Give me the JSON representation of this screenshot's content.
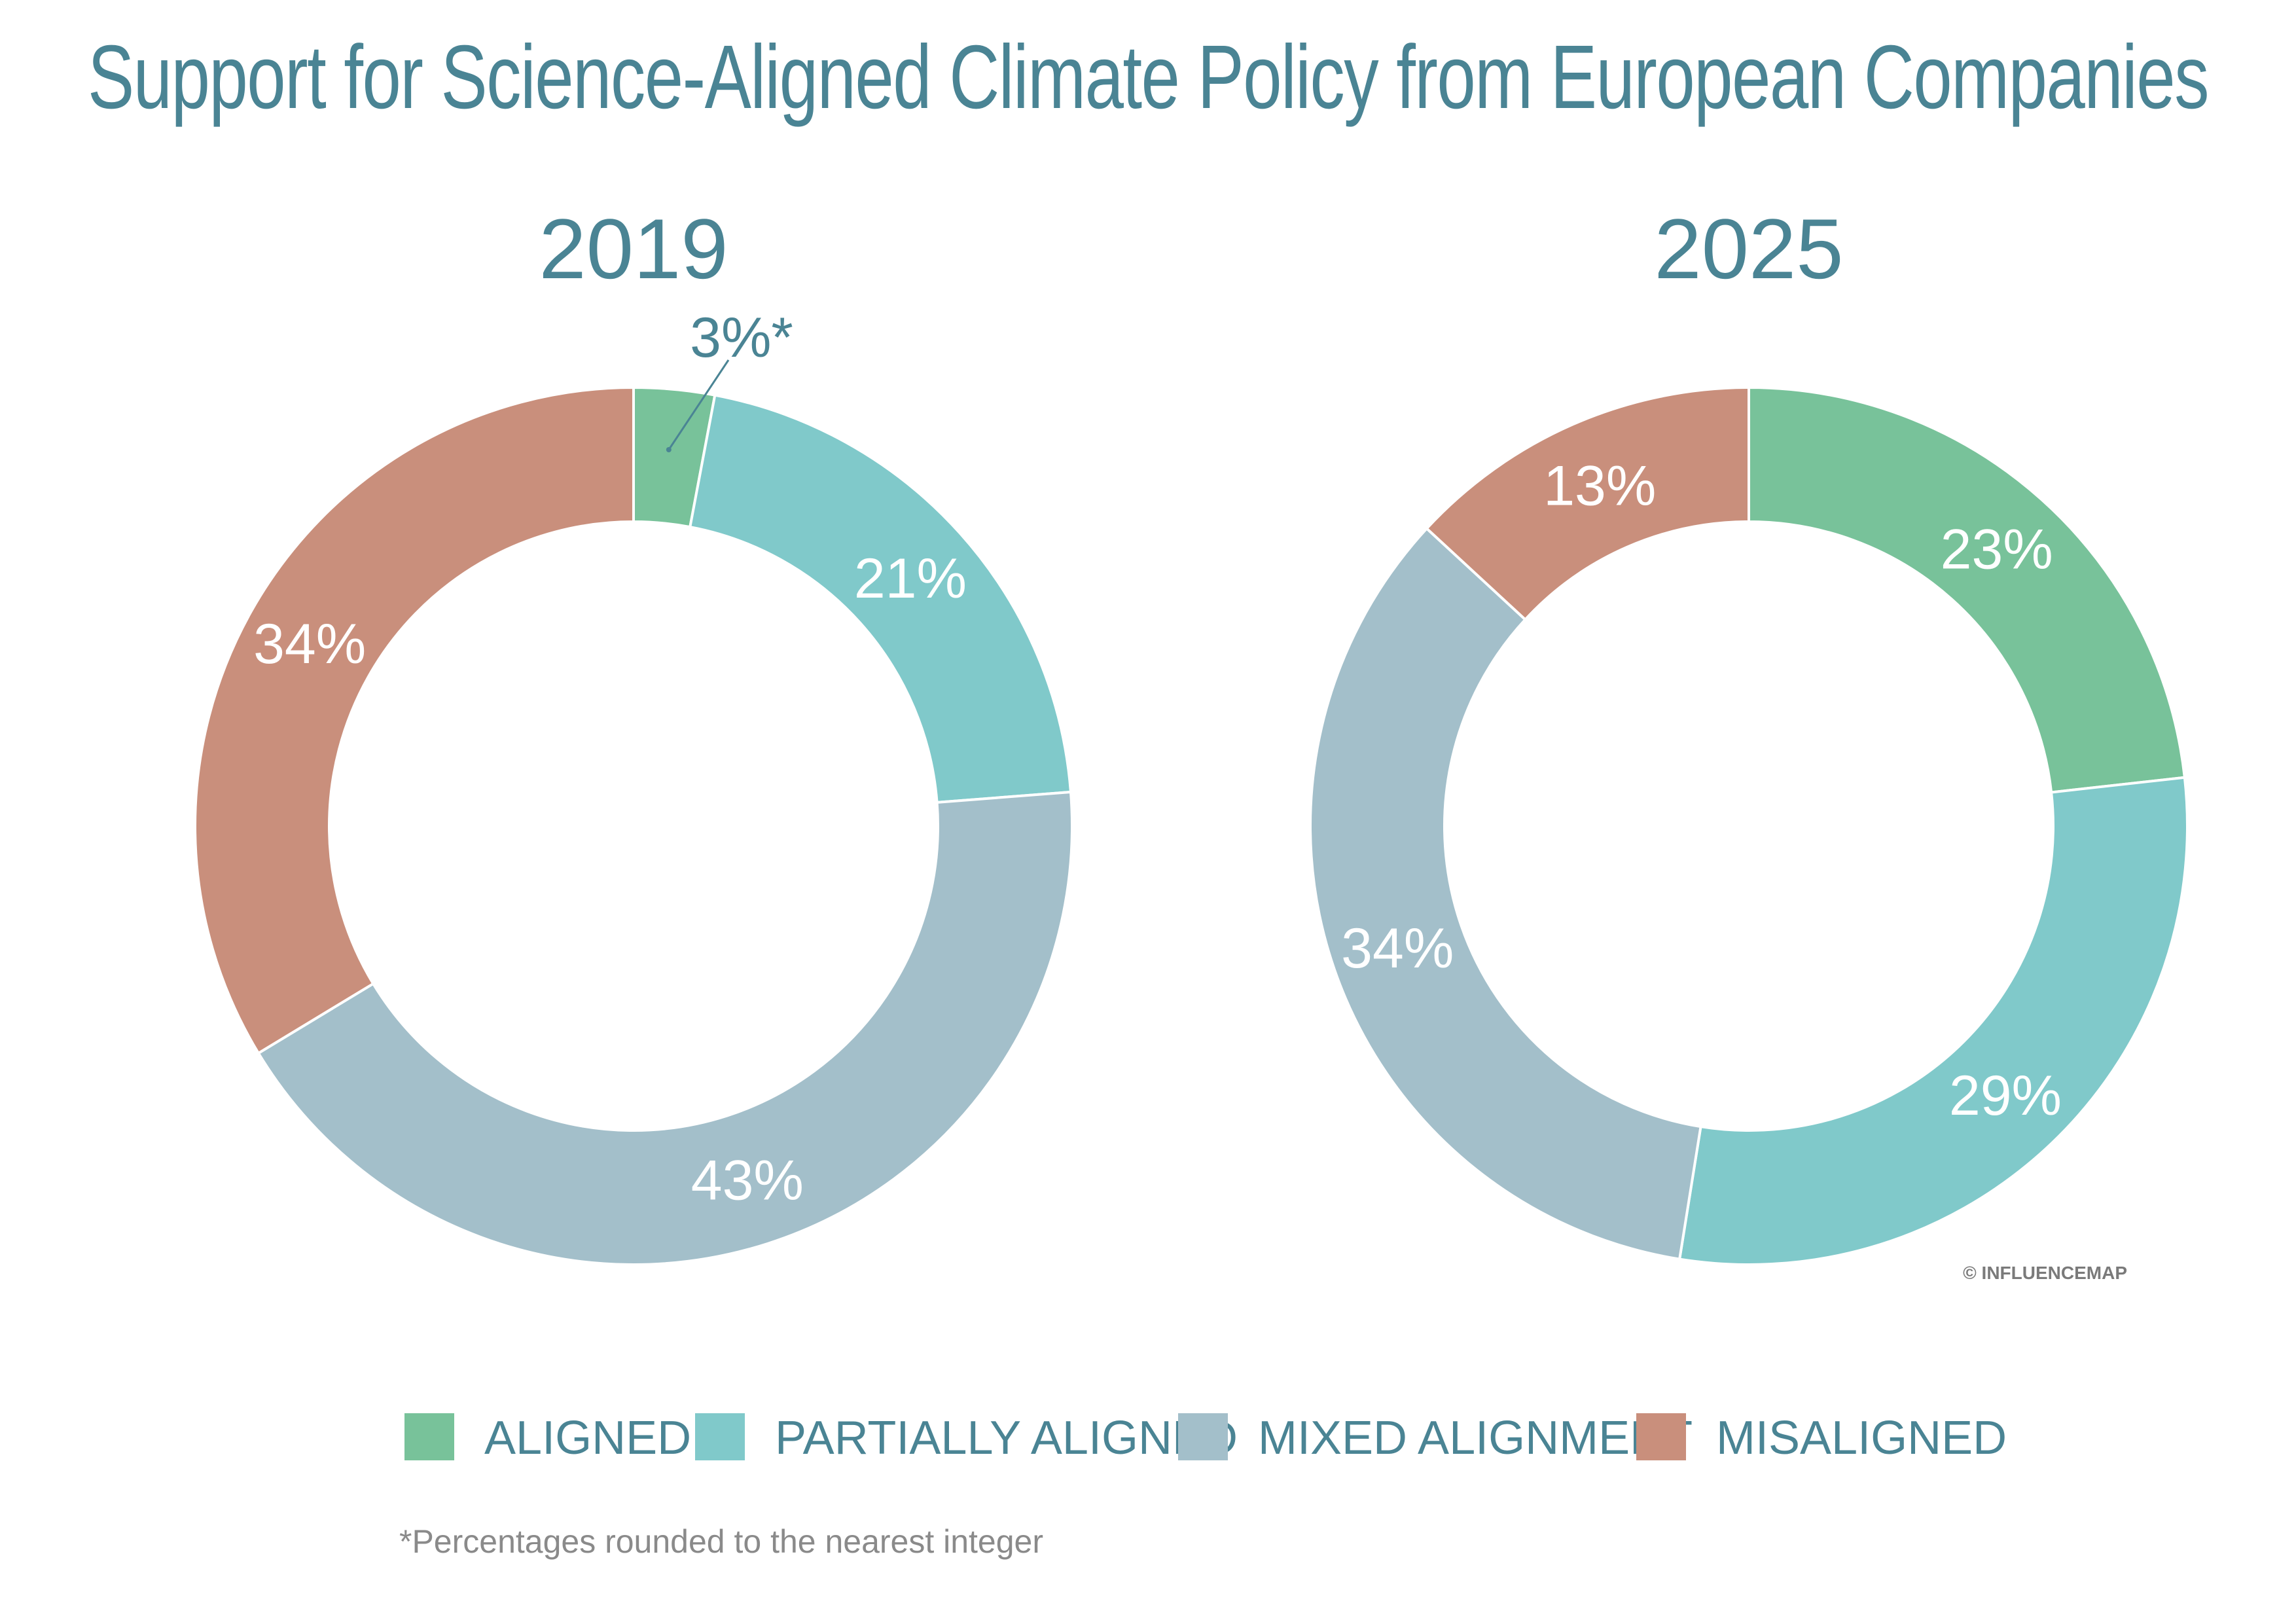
{
  "title": "Support for Science-Aligned Climate Policy from European Companies",
  "footnote": "*Percentages rounded to the nearest integer",
  "credit": "© INFLUENCEMAP",
  "colors": {
    "text": "#4a8494",
    "aligned": "#78c29a",
    "partially_aligned": "#80c9ca",
    "mixed_alignment": "#a3bfca",
    "misaligned": "#c98f7c"
  },
  "legend": [
    {
      "label": "ALIGNED",
      "color": "#78c29a"
    },
    {
      "label": "PARTIALLY ALIGNED",
      "color": "#80c9ca"
    },
    {
      "label": "MIXED ALIGNMENT",
      "color": "#a3bfca"
    },
    {
      "label": "MISALIGNED",
      "color": "#c98f7c"
    }
  ],
  "chart_data": [
    {
      "type": "pie",
      "title": "2019",
      "categories": [
        "ALIGNED",
        "PARTIALLY ALIGNED",
        "MIXED ALIGNMENT",
        "MISALIGNED"
      ],
      "values": [
        3,
        21,
        43,
        34
      ],
      "labels": [
        "3%*",
        "21%",
        "43%",
        "34%"
      ],
      "colors": [
        "#78c29a",
        "#80c9ca",
        "#a3bfca",
        "#c98f7c"
      ]
    },
    {
      "type": "pie",
      "title": "2025",
      "categories": [
        "ALIGNED",
        "PARTIALLY ALIGNED",
        "MIXED ALIGNMENT",
        "MISALIGNED"
      ],
      "values": [
        23,
        29,
        34,
        13
      ],
      "labels": [
        "23%",
        "29%",
        "34%",
        "13%"
      ],
      "colors": [
        "#78c29a",
        "#80c9ca",
        "#a3bfca",
        "#c98f7c"
      ]
    }
  ]
}
